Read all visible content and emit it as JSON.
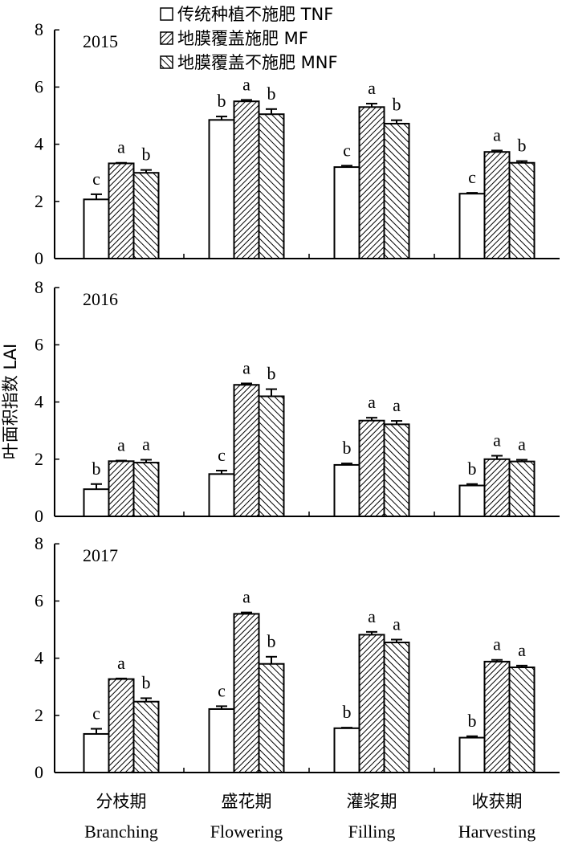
{
  "chart_data": {
    "type": "bar",
    "ylabel": "叶面积指数 LAI",
    "ylim": [
      0,
      8
    ],
    "yticks": [
      "0",
      "2",
      "4",
      "6",
      "8"
    ],
    "categories": [
      {
        "cn": "分枝期",
        "en": "Branching"
      },
      {
        "cn": "盛花期",
        "en": "Flowering"
      },
      {
        "cn": "灌浆期",
        "en": "Filling"
      },
      {
        "cn": "收获期",
        "en": "Harvesting"
      }
    ],
    "legend": [
      {
        "label": "传统种植不施肥 TNF",
        "pattern": "none"
      },
      {
        "label": "地膜覆盖施肥 MF",
        "pattern": "hatch-forward"
      },
      {
        "label": "地膜覆盖不施肥 MNF",
        "pattern": "hatch-back"
      }
    ],
    "legend_position": "top-center",
    "panels": [
      {
        "year": "2015",
        "series": [
          {
            "name": "TNF",
            "values": [
              2.07,
              4.85,
              3.2,
              2.27
            ],
            "errors": [
              0.18,
              0.12,
              0.05,
              0.03
            ],
            "letters": [
              "c",
              "b",
              "c",
              "c"
            ]
          },
          {
            "name": "MF",
            "values": [
              3.33,
              5.5,
              5.3,
              3.73
            ],
            "errors": [
              0.02,
              0.05,
              0.12,
              0.05
            ],
            "letters": [
              "a",
              "a",
              "a",
              "a"
            ]
          },
          {
            "name": "MNF",
            "values": [
              3.0,
              5.05,
              4.72,
              3.35
            ],
            "errors": [
              0.1,
              0.18,
              0.12,
              0.06
            ],
            "letters": [
              "b",
              "b",
              "b",
              "b"
            ]
          }
        ]
      },
      {
        "year": "2016",
        "series": [
          {
            "name": "TNF",
            "values": [
              0.95,
              1.48,
              1.8,
              1.08
            ],
            "errors": [
              0.18,
              0.12,
              0.05,
              0.05
            ],
            "letters": [
              "b",
              "c",
              "b",
              "b"
            ]
          },
          {
            "name": "MF",
            "values": [
              1.93,
              4.6,
              3.35,
              2.0
            ],
            "errors": [
              0.02,
              0.05,
              0.1,
              0.12
            ],
            "letters": [
              "a",
              "a",
              "a",
              "a"
            ]
          },
          {
            "name": "MNF",
            "values": [
              1.88,
              4.2,
              3.22,
              1.92
            ],
            "errors": [
              0.1,
              0.25,
              0.12,
              0.06
            ],
            "letters": [
              "a",
              "b",
              "a",
              "a"
            ]
          }
        ]
      },
      {
        "year": "2017",
        "series": [
          {
            "name": "TNF",
            "values": [
              1.35,
              2.22,
              1.55,
              1.22
            ],
            "errors": [
              0.18,
              0.1,
              0.02,
              0.05
            ],
            "letters": [
              "c",
              "c",
              "b",
              "b"
            ]
          },
          {
            "name": "MF",
            "values": [
              3.27,
              5.55,
              4.82,
              3.88
            ],
            "errors": [
              0.02,
              0.05,
              0.1,
              0.06
            ],
            "letters": [
              "a",
              "a",
              "a",
              "a"
            ]
          },
          {
            "name": "MNF",
            "values": [
              2.48,
              3.8,
              4.55,
              3.68
            ],
            "errors": [
              0.12,
              0.25,
              0.1,
              0.06
            ],
            "letters": [
              "b",
              "b",
              "a",
              "a"
            ]
          }
        ]
      }
    ]
  }
}
